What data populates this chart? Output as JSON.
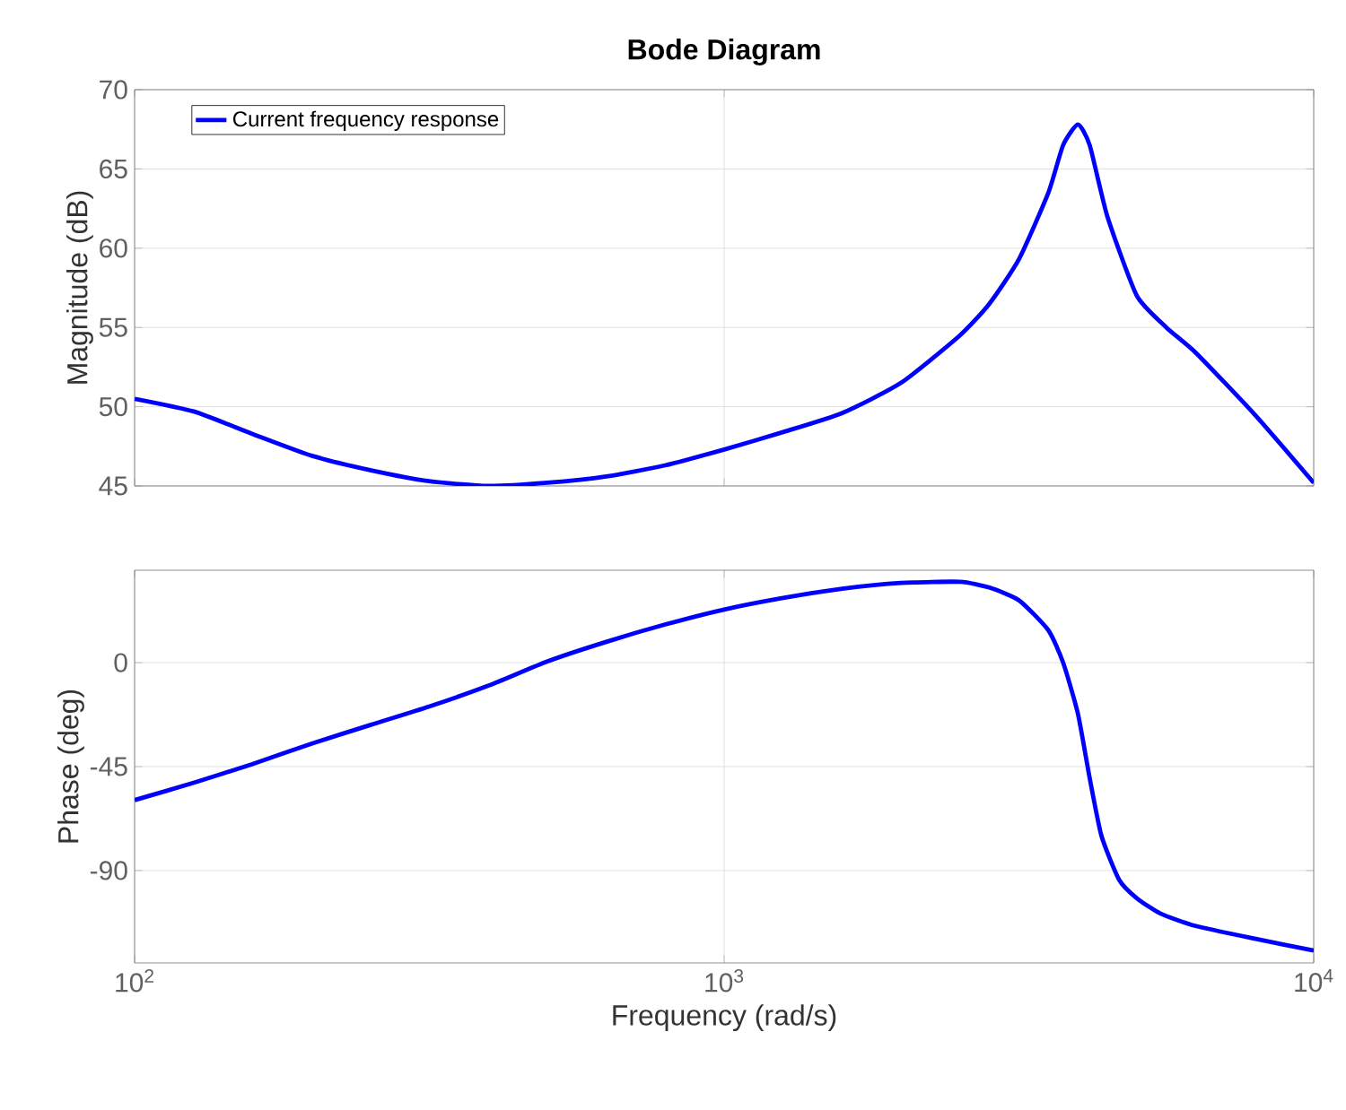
{
  "chart_data": [
    {
      "type": "line",
      "title": "Bode Diagram",
      "ylabel": "Magnitude (dB)",
      "log": "x",
      "grid": true,
      "legend": "top left",
      "marker": "none",
      "line_style": "solid",
      "tick_labels": "y",
      "xlim": [
        100,
        10000
      ],
      "xticks": [
        100,
        1000,
        10000
      ],
      "ylim": [
        45,
        70
      ],
      "yticks": [
        45,
        50,
        55,
        60,
        65,
        70
      ],
      "series": [
        {
          "name": "Current frequency response",
          "color": "#0000ff",
          "x": [
            100,
            126,
            158,
            200,
            251,
            316,
            398,
            501,
            631,
            794,
            1000,
            1259,
            1585,
            1995,
            2512,
            2818,
            3162,
            3548,
            3758,
            3981,
            4169,
            4467,
            5012,
            5623,
            6310,
            7943,
            10000
          ],
          "values": [
            50.5,
            49.7,
            48.3,
            46.9,
            46.0,
            45.3,
            45.0,
            45.2,
            45.6,
            46.3,
            47.3,
            48.4,
            49.6,
            51.5,
            54.5,
            56.5,
            59.3,
            63.5,
            66.5,
            67.8,
            66.5,
            62.0,
            57.0,
            55.0,
            53.4,
            49.5,
            45.2
          ]
        }
      ]
    },
    {
      "type": "line",
      "xlabel": "Frequency (rad/s)",
      "ylabel": "Phase (deg)",
      "log": "x",
      "grid": true,
      "marker": "none",
      "line_style": "solid",
      "xlim": [
        100,
        10000
      ],
      "xticks": [
        {
          "value": 100,
          "label": "10$^{2}$"
        },
        {
          "value": 1000,
          "label": "10$^{3}$"
        },
        {
          "value": 10000,
          "label": "10$^{4}$"
        }
      ],
      "ylim": [
        -130,
        40
      ],
      "yticks": [
        -90,
        -45,
        0
      ],
      "series": [
        {
          "color": "#0000ff",
          "x": [
            100,
            126,
            158,
            200,
            251,
            316,
            398,
            501,
            631,
            794,
            1000,
            1259,
            1585,
            1995,
            2512,
            2818,
            3162,
            3548,
            3758,
            3981,
            4169,
            4365,
            4677,
            5012,
            5495,
            6310,
            7943,
            10000
          ],
          "values": [
            -59.5,
            -52,
            -44,
            -35,
            -27,
            -19,
            -10,
            0.5,
            9,
            16.5,
            23,
            28,
            32,
            34.5,
            35,
            32.5,
            27,
            14,
            0,
            -22,
            -50,
            -75,
            -94,
            -102,
            -108.6,
            -114,
            -119.5,
            -124.6
          ]
        }
      ]
    }
  ]
}
